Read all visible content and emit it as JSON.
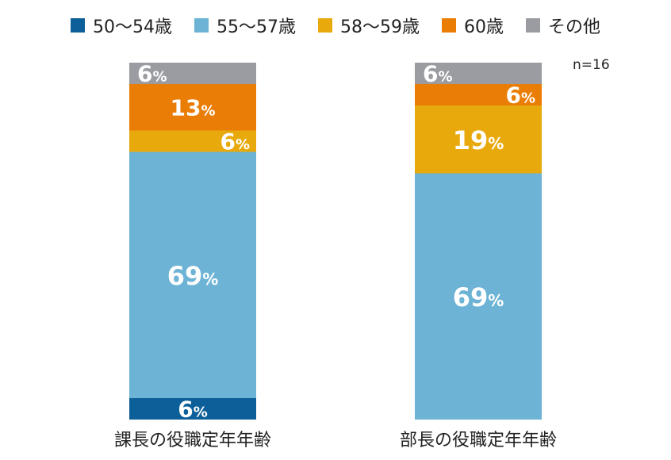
{
  "chart_data": {
    "type": "bar",
    "stacked": true,
    "orientation": "vertical",
    "percent": true,
    "categories": [
      "課長の役職定年年齢",
      "部長の役職定年年齢"
    ],
    "series": [
      {
        "name": "50〜54歳",
        "color": "#0d5f99",
        "values": [
          6,
          0
        ]
      },
      {
        "name": "55〜57歳",
        "color": "#6db3d5",
        "values": [
          69,
          69
        ]
      },
      {
        "name": "58〜59歳",
        "color": "#e8a90c",
        "values": [
          6,
          19
        ]
      },
      {
        "name": "60歳",
        "color": "#ea7d05",
        "values": [
          13,
          6
        ]
      },
      {
        "name": "その他",
        "color": "#9a9ca1",
        "values": [
          6,
          6
        ]
      }
    ],
    "data_labels": [
      [
        "6",
        "69",
        "6",
        "13",
        "6"
      ],
      [
        "",
        "69",
        "19",
        "6",
        "6"
      ]
    ],
    "unit_suffix": "%",
    "annotation": "n=16",
    "legend_position": "top",
    "grid": false,
    "ylim": [
      0,
      100
    ]
  }
}
